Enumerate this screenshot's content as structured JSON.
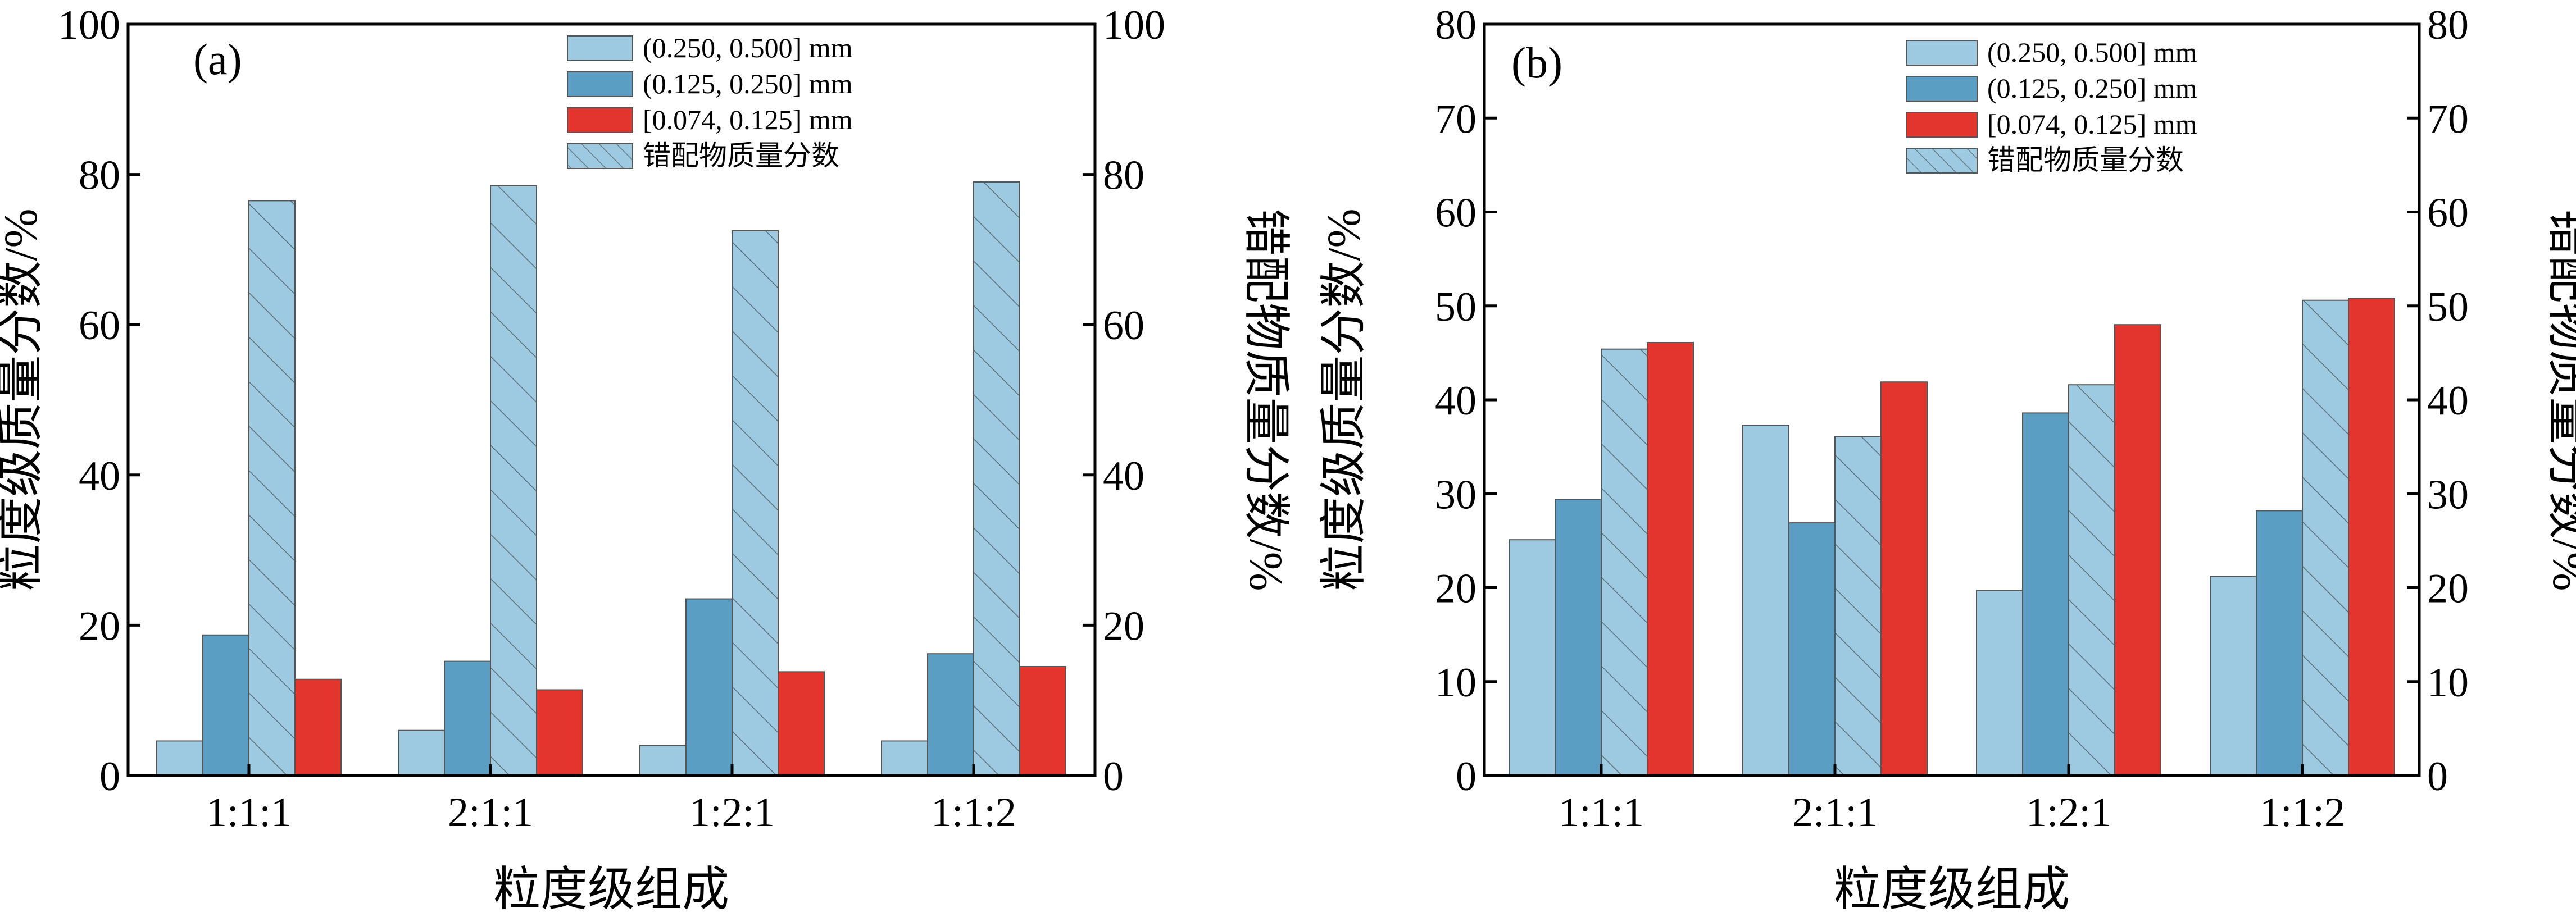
{
  "chart_data": [
    {
      "type": "bar",
      "panel_label": "(a)",
      "categories": [
        "1:1:1",
        "2:1:1",
        "1:2:1",
        "1:1:2"
      ],
      "xlabel": "粒度级组成",
      "ylabel_left": "粒度级质量分数/%",
      "ylabel_right": "错配物质量分数/%",
      "ylim": [
        0,
        100
      ],
      "yticks": [
        0,
        20,
        40,
        60,
        80,
        100
      ],
      "grid": false,
      "legend_position": "top-right",
      "series": [
        {
          "name": "(0.250, 0.500] mm",
          "color": "#9ECAE1",
          "hatch": false,
          "values": [
            4.6,
            6.0,
            4.0,
            4.6
          ]
        },
        {
          "name": "(0.125, 0.250] mm",
          "color": "#5B9EC3",
          "hatch": false,
          "values": [
            18.7,
            15.2,
            23.5,
            16.2
          ]
        },
        {
          "name": "错配物质量分数",
          "color": "#9ECAE1",
          "hatch": true,
          "values": [
            76.5,
            78.5,
            72.5,
            79.0
          ]
        },
        {
          "name": "[0.074, 0.125] mm",
          "color": "#E3352D",
          "hatch": false,
          "values": [
            12.8,
            11.4,
            13.8,
            14.5
          ]
        }
      ],
      "legend_order": [
        0,
        1,
        3,
        2
      ]
    },
    {
      "type": "bar",
      "panel_label": "(b)",
      "categories": [
        "1:1:1",
        "2:1:1",
        "1:2:1",
        "1:1:2"
      ],
      "xlabel": "粒度级组成",
      "ylabel_left": "粒度级质量分数/%",
      "ylabel_right": "错配物质量分数/%",
      "ylim": [
        0,
        80
      ],
      "yticks": [
        0,
        10,
        20,
        30,
        40,
        50,
        60,
        70,
        80
      ],
      "grid": false,
      "legend_position": "top-right",
      "series": [
        {
          "name": "(0.250, 0.500] mm",
          "color": "#9ECAE1",
          "hatch": false,
          "values": [
            25.1,
            37.3,
            19.7,
            21.2
          ]
        },
        {
          "name": "(0.125, 0.250] mm",
          "color": "#5B9EC3",
          "hatch": false,
          "values": [
            29.4,
            26.9,
            38.6,
            28.2
          ]
        },
        {
          "name": "错配物质量分数",
          "color": "#9ECAE1",
          "hatch": true,
          "values": [
            45.4,
            36.1,
            41.6,
            50.6
          ]
        },
        {
          "name": "[0.074, 0.125] mm",
          "color": "#E3352D",
          "hatch": false,
          "values": [
            46.1,
            41.9,
            48.0,
            50.8
          ]
        }
      ],
      "legend_order": [
        0,
        1,
        3,
        2
      ]
    }
  ]
}
